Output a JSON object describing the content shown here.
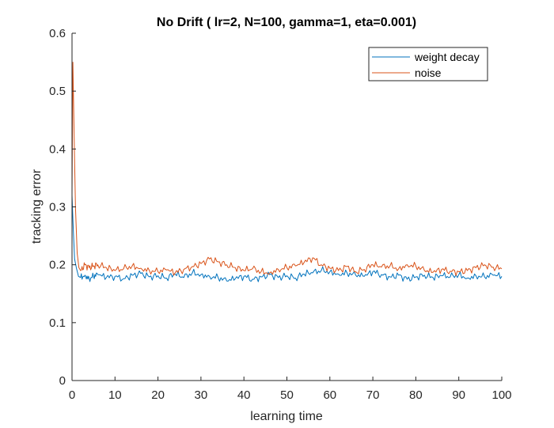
{
  "chart_data": {
    "type": "line",
    "title": "No Drift ( lr=2, N=100, gamma=1, eta=0.001)",
    "xlabel": "learning time",
    "ylabel": "tracking error",
    "xlim": [
      0,
      100
    ],
    "ylim": [
      0,
      0.6
    ],
    "xticks": [
      0,
      10,
      20,
      30,
      40,
      50,
      60,
      70,
      80,
      90,
      100
    ],
    "yticks": [
      0,
      0.1,
      0.2,
      0.3,
      0.4,
      0.5,
      0.6
    ],
    "xtick_labels": [
      "0",
      "10",
      "20",
      "30",
      "40",
      "50",
      "60",
      "70",
      "80",
      "90",
      "100"
    ],
    "ytick_labels": [
      "0",
      "0.1",
      "0.2",
      "0.3",
      "0.4",
      "0.5",
      "0.6"
    ],
    "grid": false,
    "legend_position": "top-right",
    "series": [
      {
        "name": "weight decay",
        "color": "#0072BD",
        "x": [
          0,
          0.3,
          0.6,
          1,
          1.5,
          2,
          3,
          4,
          5,
          6,
          8,
          10,
          12,
          14,
          16,
          18,
          20,
          22,
          24,
          26,
          28,
          30,
          32,
          34,
          36,
          38,
          40,
          42,
          44,
          46,
          48,
          50,
          52,
          54,
          56,
          58,
          60,
          62,
          64,
          66,
          68,
          70,
          72,
          74,
          76,
          78,
          80,
          82,
          84,
          86,
          88,
          90,
          92,
          94,
          96,
          98,
          100
        ],
        "y": [
          0.32,
          0.26,
          0.21,
          0.195,
          0.18,
          0.178,
          0.182,
          0.176,
          0.18,
          0.183,
          0.178,
          0.18,
          0.176,
          0.182,
          0.185,
          0.179,
          0.181,
          0.177,
          0.184,
          0.178,
          0.186,
          0.183,
          0.18,
          0.178,
          0.172,
          0.176,
          0.18,
          0.175,
          0.179,
          0.183,
          0.178,
          0.181,
          0.177,
          0.184,
          0.186,
          0.19,
          0.188,
          0.184,
          0.186,
          0.182,
          0.18,
          0.188,
          0.183,
          0.179,
          0.182,
          0.175,
          0.179,
          0.182,
          0.178,
          0.181,
          0.179,
          0.183,
          0.177,
          0.181,
          0.179,
          0.182,
          0.18
        ]
      },
      {
        "name": "noise",
        "color": "#D95319",
        "x": [
          0,
          0.2,
          0.5,
          0.8,
          1.2,
          1.6,
          2,
          3,
          4,
          5,
          6,
          8,
          10,
          12,
          14,
          16,
          18,
          20,
          22,
          24,
          26,
          28,
          30,
          32,
          34,
          36,
          38,
          40,
          42,
          44,
          46,
          48,
          50,
          52,
          54,
          56,
          58,
          60,
          62,
          64,
          66,
          68,
          70,
          72,
          74,
          76,
          78,
          80,
          82,
          84,
          86,
          88,
          90,
          92,
          94,
          96,
          98,
          100
        ],
        "y": [
          0.32,
          0.55,
          0.42,
          0.3,
          0.22,
          0.195,
          0.19,
          0.2,
          0.195,
          0.198,
          0.2,
          0.195,
          0.19,
          0.193,
          0.198,
          0.194,
          0.19,
          0.188,
          0.191,
          0.186,
          0.192,
          0.197,
          0.202,
          0.21,
          0.205,
          0.2,
          0.195,
          0.19,
          0.193,
          0.188,
          0.186,
          0.192,
          0.195,
          0.198,
          0.204,
          0.212,
          0.2,
          0.194,
          0.19,
          0.197,
          0.188,
          0.192,
          0.2,
          0.196,
          0.198,
          0.193,
          0.2,
          0.198,
          0.19,
          0.187,
          0.192,
          0.189,
          0.188,
          0.19,
          0.195,
          0.2,
          0.196,
          0.193
        ]
      }
    ]
  }
}
